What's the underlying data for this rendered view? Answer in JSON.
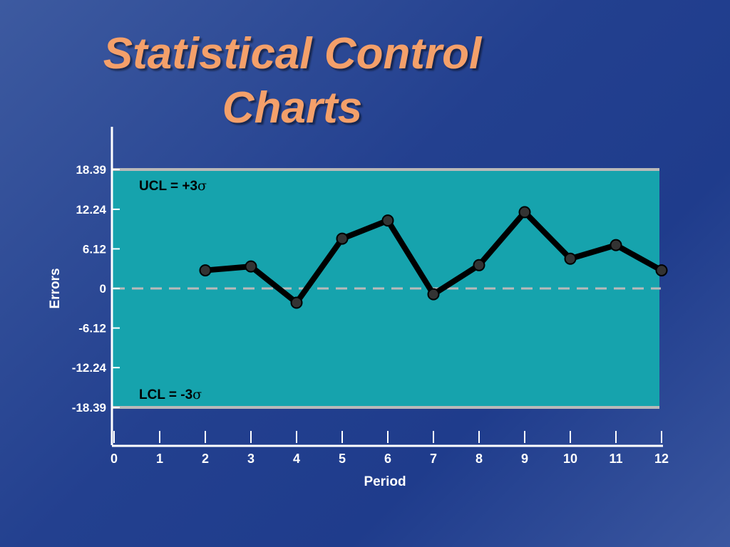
{
  "slide": {
    "title_line1": "Statistical Control",
    "title_line2": "Charts"
  },
  "colors": {
    "background": "#23408f",
    "title": "#f4a06a",
    "plot_band": "#16a3ad",
    "limit_lines": "#b9b9b9",
    "series": "#000000",
    "marker": "#333333",
    "axis": "#ffffff"
  },
  "chart_data": {
    "type": "line",
    "title": "",
    "xlabel": "Period",
    "ylabel": "Errors",
    "x_ticks": [
      0,
      1,
      2,
      3,
      4,
      5,
      6,
      7,
      8,
      9,
      10,
      11,
      12
    ],
    "y_ticks": [
      "18.39",
      "12.24",
      "6.12",
      "0",
      "-6.12",
      "-12.24",
      "-18.39"
    ],
    "y_tick_values": [
      18.39,
      12.24,
      6.12,
      0,
      -6.12,
      -12.24,
      -18.39
    ],
    "xlim": [
      0,
      12
    ],
    "ylim": [
      -18.39,
      18.39
    ],
    "x": [
      2,
      3,
      4,
      5,
      6,
      7,
      8,
      9,
      10,
      11,
      12
    ],
    "values": [
      2.8,
      3.4,
      -2.2,
      7.7,
      10.5,
      -0.9,
      3.6,
      11.8,
      4.6,
      6.7,
      2.8
    ],
    "ucl": {
      "label": "UCL = +3",
      "sigma": "σ",
      "value": 18.39
    },
    "lcl": {
      "label": "LCL = -3",
      "sigma": "σ",
      "value": -18.39
    },
    "center_line": 0,
    "center_line_style": "dashed"
  }
}
